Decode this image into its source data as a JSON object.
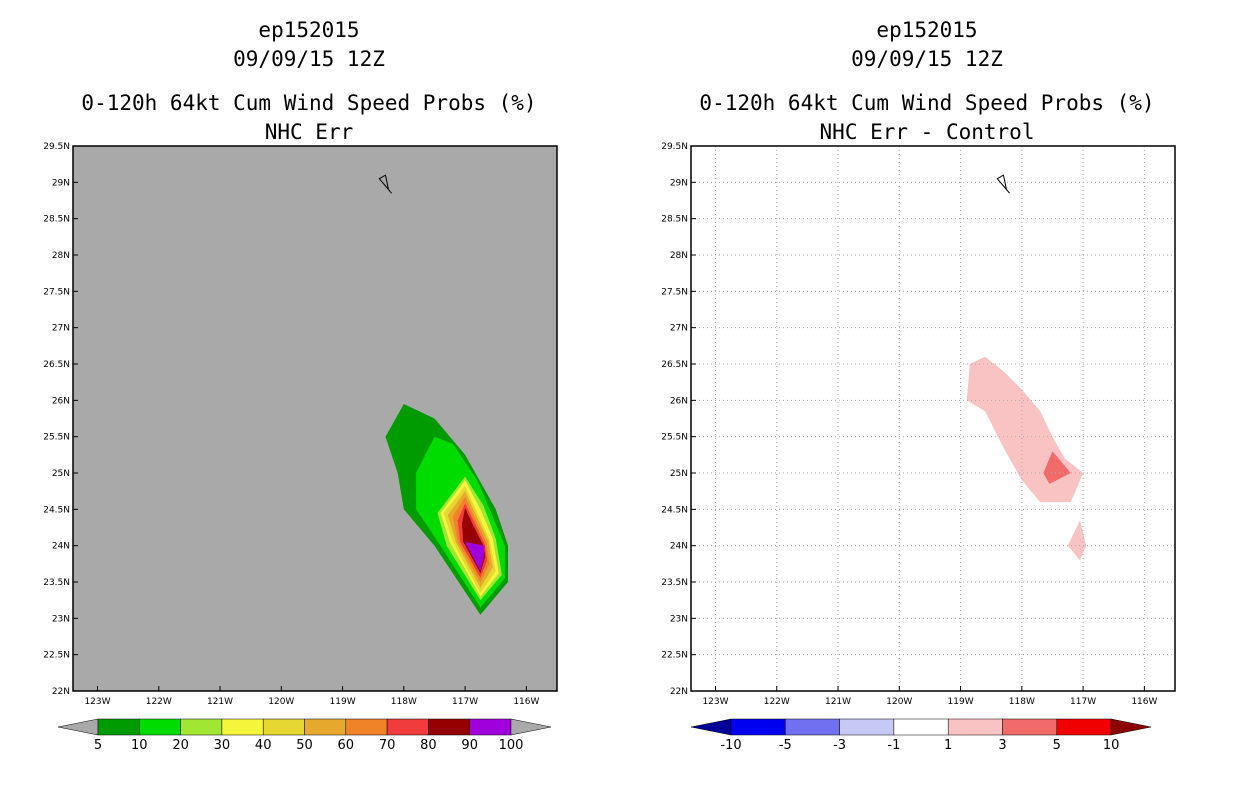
{
  "chart_data": [
    {
      "type": "heatmap",
      "storm": "ep152015",
      "date": "09/09/15 12Z",
      "title": "0-120h 64kt Cum Wind Speed Probs (%)",
      "subtitle": "NHC Err",
      "lon_range": [
        -123.4,
        -115.5
      ],
      "lat_range": [
        22,
        29.5
      ],
      "x_ticks": [
        "123W",
        "122W",
        "121W",
        "120W",
        "119W",
        "118W",
        "117W",
        "116W"
      ],
      "y_ticks": [
        "22N",
        "22.5N",
        "23N",
        "23.5N",
        "24N",
        "24.5N",
        "25N",
        "25.5N",
        "26N",
        "26.5N",
        "27N",
        "27.5N",
        "28N",
        "28.5N",
        "29N",
        "29.5N"
      ],
      "background": "#a9a9a9",
      "colorbar": {
        "labels": [
          "5",
          "10",
          "20",
          "30",
          "40",
          "50",
          "60",
          "70",
          "80",
          "90",
          "100"
        ],
        "colors": [
          "#009b00",
          "#00dc00",
          "#a0e632",
          "#f5f53c",
          "#e6d732",
          "#e6a82d",
          "#f08228",
          "#f03c3c",
          "#960000",
          "#a000dc"
        ]
      },
      "contours": [
        {
          "level": 5,
          "color": "#009b00",
          "points": [
            [
              -118.3,
              25.5
            ],
            [
              -118.0,
              25.95
            ],
            [
              -117.5,
              25.75
            ],
            [
              -117.0,
              25.25
            ],
            [
              -116.5,
              24.5
            ],
            [
              -116.3,
              24.0
            ],
            [
              -116.3,
              23.5
            ],
            [
              -116.75,
              23.05
            ],
            [
              -117.5,
              24.0
            ],
            [
              -118.0,
              24.5
            ],
            [
              -118.1,
              25.0
            ]
          ]
        },
        {
          "level": 10,
          "color": "#00dc00",
          "points": [
            [
              -117.8,
              25.0
            ],
            [
              -117.5,
              25.5
            ],
            [
              -117.2,
              25.4
            ],
            [
              -116.8,
              24.9
            ],
            [
              -116.5,
              24.3
            ],
            [
              -116.35,
              24.0
            ],
            [
              -116.35,
              23.55
            ],
            [
              -116.75,
              23.15
            ],
            [
              -117.4,
              24.0
            ],
            [
              -117.8,
              24.5
            ]
          ]
        },
        {
          "level": 20,
          "color": "#a0e632",
          "points": [
            [
              -117.45,
              24.45
            ],
            [
              -117.0,
              24.95
            ],
            [
              -116.7,
              24.55
            ],
            [
              -116.5,
              24.1
            ],
            [
              -116.4,
              23.6
            ],
            [
              -116.75,
              23.25
            ],
            [
              -117.3,
              24.0
            ]
          ]
        },
        {
          "level": 30,
          "color": "#f5f53c",
          "points": [
            [
              -117.4,
              24.45
            ],
            [
              -117.0,
              24.9
            ],
            [
              -116.75,
              24.5
            ],
            [
              -116.55,
              24.1
            ],
            [
              -116.45,
              23.62
            ],
            [
              -116.75,
              23.3
            ],
            [
              -117.25,
              24.05
            ]
          ]
        },
        {
          "level": 40,
          "color": "#e6d732",
          "points": [
            [
              -117.35,
              24.45
            ],
            [
              -117.0,
              24.82
            ],
            [
              -116.8,
              24.45
            ],
            [
              -116.6,
              24.08
            ],
            [
              -116.5,
              23.65
            ],
            [
              -116.75,
              23.35
            ],
            [
              -117.2,
              24.05
            ]
          ]
        },
        {
          "level": 50,
          "color": "#e6a82d",
          "points": [
            [
              -117.28,
              24.42
            ],
            [
              -117.0,
              24.75
            ],
            [
              -116.82,
              24.42
            ],
            [
              -116.62,
              24.06
            ],
            [
              -116.55,
              23.7
            ],
            [
              -116.75,
              23.42
            ],
            [
              -117.15,
              24.05
            ]
          ]
        },
        {
          "level": 60,
          "color": "#f08228",
          "points": [
            [
              -117.2,
              24.4
            ],
            [
              -117.0,
              24.67
            ],
            [
              -116.84,
              24.38
            ],
            [
              -116.65,
              24.04
            ],
            [
              -116.6,
              23.75
            ],
            [
              -116.75,
              23.5
            ],
            [
              -117.12,
              24.05
            ]
          ]
        },
        {
          "level": 70,
          "color": "#f03c3c",
          "points": [
            [
              -117.12,
              24.35
            ],
            [
              -117.0,
              24.58
            ],
            [
              -116.86,
              24.34
            ],
            [
              -116.68,
              24.02
            ],
            [
              -116.64,
              23.8
            ],
            [
              -116.75,
              23.56
            ],
            [
              -117.08,
              24.05
            ]
          ]
        },
        {
          "level": 80,
          "color": "#960000",
          "points": [
            [
              -117.05,
              24.3
            ],
            [
              -117.0,
              24.52
            ],
            [
              -116.88,
              24.3
            ],
            [
              -116.7,
              24.0
            ],
            [
              -116.67,
              23.85
            ],
            [
              -116.75,
              23.62
            ],
            [
              -117.03,
              24.05
            ]
          ]
        },
        {
          "level": 90,
          "color": "#a000dc",
          "points": [
            [
              -117.0,
              24.05
            ],
            [
              -116.68,
              24.0
            ],
            [
              -116.7,
              23.85
            ],
            [
              -116.75,
              23.65
            ]
          ]
        }
      ]
    },
    {
      "type": "heatmap",
      "storm": "ep152015",
      "date": "09/09/15 12Z",
      "title": "0-120h 64kt Cum Wind Speed Probs (%)",
      "subtitle": "NHC Err - Control",
      "lon_range": [
        -123.4,
        -115.5
      ],
      "lat_range": [
        22,
        29.5
      ],
      "x_ticks": [
        "123W",
        "122W",
        "121W",
        "120W",
        "119W",
        "118W",
        "117W",
        "116W"
      ],
      "y_ticks": [
        "22N",
        "22.5N",
        "23N",
        "23.5N",
        "24N",
        "24.5N",
        "25N",
        "25.5N",
        "26N",
        "26.5N",
        "27N",
        "27.5N",
        "28N",
        "28.5N",
        "29N",
        "29.5N"
      ],
      "background": "#ffffff",
      "colorbar": {
        "labels": [
          "-10",
          "-5",
          "-3",
          "-1",
          "1",
          "3",
          "5",
          "10"
        ],
        "colors": [
          "#0000f0",
          "#7070f0",
          "#c8c8f5",
          "#ffffff",
          "#fac3c3",
          "#f26b6b",
          "#f00000"
        ],
        "under_color": "#000096",
        "over_color": "#8c0000"
      },
      "contours": [
        {
          "level": 1,
          "color": "#fac3c3",
          "points": [
            [
              -118.9,
              26.0
            ],
            [
              -118.85,
              26.5
            ],
            [
              -118.6,
              26.6
            ],
            [
              -118.3,
              26.4
            ],
            [
              -118.0,
              26.15
            ],
            [
              -117.7,
              25.85
            ],
            [
              -117.5,
              25.5
            ],
            [
              -117.3,
              25.2
            ],
            [
              -117.0,
              25.0
            ],
            [
              -117.2,
              24.6
            ],
            [
              -117.7,
              24.6
            ],
            [
              -118.0,
              24.9
            ],
            [
              -118.3,
              25.35
            ],
            [
              -118.6,
              25.85
            ]
          ]
        },
        {
          "level": 1,
          "color": "#fac3c3",
          "points": [
            [
              -117.25,
              24.0
            ],
            [
              -117.05,
              24.35
            ],
            [
              -116.95,
              24.0
            ],
            [
              -117.05,
              23.8
            ]
          ]
        },
        {
          "level": 3,
          "color": "#f26b6b",
          "points": [
            [
              -117.65,
              25.0
            ],
            [
              -117.5,
              25.3
            ],
            [
              -117.2,
              25.0
            ],
            [
              -117.55,
              24.85
            ]
          ]
        }
      ]
    }
  ]
}
